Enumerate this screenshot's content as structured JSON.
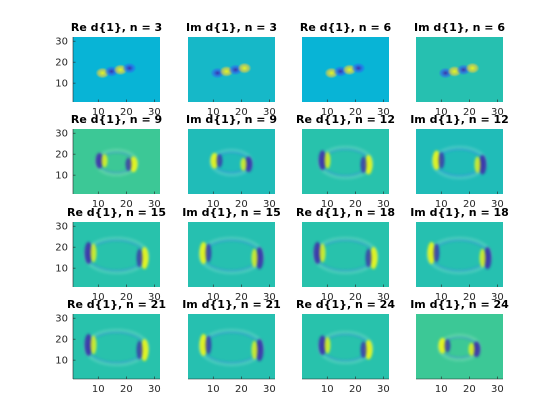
{
  "chart_data": {
    "type": "heatmap",
    "grid": false,
    "colormap": "parula",
    "x_ticks": [
      "10",
      "20",
      "30"
    ],
    "y_ticks": [
      "30",
      "20",
      "10"
    ],
    "xlim": [
      1,
      32
    ],
    "ylim": [
      1,
      32
    ],
    "panels": [
      {
        "title": "Re d{1}, n = 3",
        "background": "#08b4d6",
        "pattern": "blob",
        "show_xticks": false
      },
      {
        "title": "Im d{1}, n = 3",
        "background": "#16b8c8",
        "pattern": "blob",
        "show_xticks": false
      },
      {
        "title": "Re d{1}, n = 6",
        "background": "#08b4d6",
        "pattern": "blob",
        "show_xticks": false
      },
      {
        "title": "Im d{1}, n = 6",
        "background": "#26c0b0",
        "pattern": "blob",
        "show_xticks": false
      },
      {
        "title": "Re d{1}, n = 9",
        "background": "#3cc896",
        "pattern": "ring-sm",
        "show_xticks": false
      },
      {
        "title": "Im d{1}, n = 9",
        "background": "#20bcb8",
        "pattern": "ring-sm",
        "show_xticks": false
      },
      {
        "title": "Re d{1}, n = 12",
        "background": "#28c2ac",
        "pattern": "ring-md",
        "show_xticks": false
      },
      {
        "title": "Im d{1}, n = 12",
        "background": "#20bcb8",
        "pattern": "ring-md",
        "show_xticks": false
      },
      {
        "title": "Re d{1}, n = 15",
        "background": "#28c2ac",
        "pattern": "ring-lg",
        "show_xticks": false
      },
      {
        "title": "Im d{1}, n = 15",
        "background": "#26c0b0",
        "pattern": "ring-lg",
        "show_xticks": false
      },
      {
        "title": "Re d{1}, n = 18",
        "background": "#28c2ac",
        "pattern": "ring-lg",
        "show_xticks": false
      },
      {
        "title": "Im d{1}, n = 18",
        "background": "#26c0b0",
        "pattern": "ring-lg",
        "show_xticks": false
      },
      {
        "title": "Re d{1}, n = 21",
        "background": "#28c2ac",
        "pattern": "ring-lg",
        "show_xticks": true
      },
      {
        "title": "Im d{1}, n = 21",
        "background": "#26c0b0",
        "pattern": "ring-lg",
        "show_xticks": true
      },
      {
        "title": "Re d{1}, n = 24",
        "background": "#28c2ac",
        "pattern": "ring-md",
        "show_xticks": true
      },
      {
        "title": "Im d{1}, n = 24",
        "background": "#3cc896",
        "pattern": "ring-sm",
        "show_xticks": true
      }
    ]
  }
}
